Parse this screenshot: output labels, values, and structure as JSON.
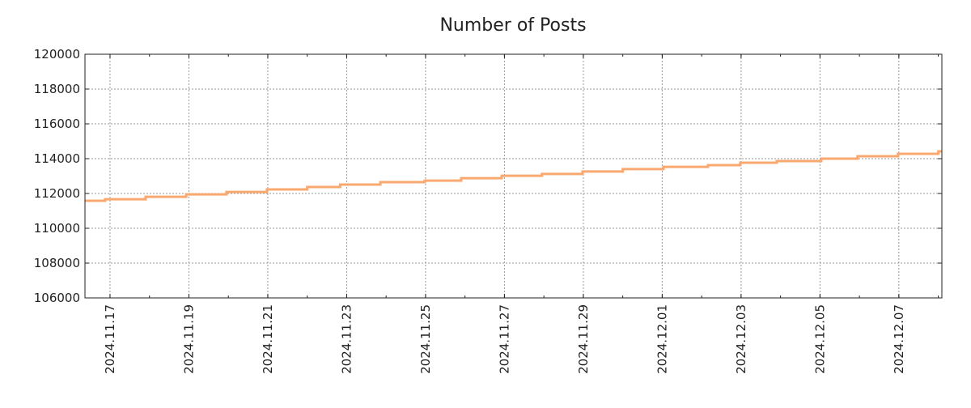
{
  "chart_data": {
    "type": "line",
    "title": "Number of Posts",
    "xlabel": "",
    "ylabel": "",
    "ylim": [
      106000,
      120000
    ],
    "xlim": [
      "2024-11-16T08:45",
      "2024-12-08T02:10"
    ],
    "yticks": [
      "106000",
      "108000",
      "110000",
      "112000",
      "114000",
      "116000",
      "118000",
      "120000"
    ],
    "xticks": [
      "2024.11.17",
      "2024.11.19",
      "2024.11.21",
      "2024.11.23",
      "2024.11.25",
      "2024.11.27",
      "2024.11.29",
      "2024.12.01",
      "2024.12.03",
      "2024.12.05",
      "2024.12.07"
    ],
    "grid": true,
    "line_style": "step",
    "series": [
      {
        "name": "Number of Posts",
        "color": "#f9a870",
        "points": [
          [
            "2024-11-16T08:45",
            111580
          ],
          [
            "2024-11-16T21:00",
            111670
          ],
          [
            "2024-11-17T21:40",
            111810
          ],
          [
            "2024-11-18T22:20",
            111950
          ],
          [
            "2024-11-19T22:50",
            112090
          ],
          [
            "2024-11-20T23:30",
            112230
          ],
          [
            "2024-11-22T00:00",
            112370
          ],
          [
            "2024-11-22T20:00",
            112510
          ],
          [
            "2024-11-23T20:30",
            112650
          ],
          [
            "2024-11-24T23:30",
            112740
          ],
          [
            "2024-11-25T21:40",
            112880
          ],
          [
            "2024-11-26T22:20",
            113020
          ],
          [
            "2024-11-27T22:50",
            113120
          ],
          [
            "2024-11-28T23:30",
            113260
          ],
          [
            "2024-11-30T00:00",
            113400
          ],
          [
            "2024-12-01T00:45",
            113530
          ],
          [
            "2024-12-02T03:50",
            113630
          ],
          [
            "2024-12-02T23:30",
            113770
          ],
          [
            "2024-12-03T21:40",
            113860
          ],
          [
            "2024-12-05T00:45",
            114000
          ],
          [
            "2024-12-05T22:50",
            114140
          ],
          [
            "2024-12-06T23:30",
            114280
          ],
          [
            "2024-12-08T00:00",
            114420
          ],
          [
            "2024-12-08T02:10",
            114420
          ]
        ]
      }
    ]
  }
}
